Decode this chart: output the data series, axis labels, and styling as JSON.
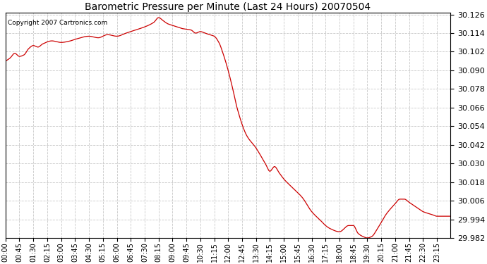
{
  "title": "Barometric Pressure per Minute (Last 24 Hours) 20070504",
  "copyright_text": "Copyright 2007 Cartronics.com",
  "line_color": "#cc0000",
  "bg_color": "#ffffff",
  "plot_bg_color": "#ffffff",
  "grid_color": "#c8c8c8",
  "grid_style": "--",
  "ylim_min": 29.982,
  "ylim_max": 30.1272,
  "yticks": [
    29.982,
    29.994,
    30.006,
    30.018,
    30.03,
    30.042,
    30.054,
    30.066,
    30.078,
    30.09,
    30.102,
    30.114,
    30.126
  ],
  "xtick_labels": [
    "00:00",
    "00:45",
    "01:30",
    "02:15",
    "03:00",
    "03:45",
    "04:30",
    "05:15",
    "06:00",
    "06:45",
    "07:30",
    "08:15",
    "09:00",
    "09:45",
    "10:30",
    "11:15",
    "12:00",
    "12:45",
    "13:30",
    "14:15",
    "15:00",
    "15:45",
    "16:30",
    "17:15",
    "18:00",
    "18:45",
    "19:30",
    "20:15",
    "21:00",
    "21:45",
    "22:30",
    "23:15"
  ]
}
